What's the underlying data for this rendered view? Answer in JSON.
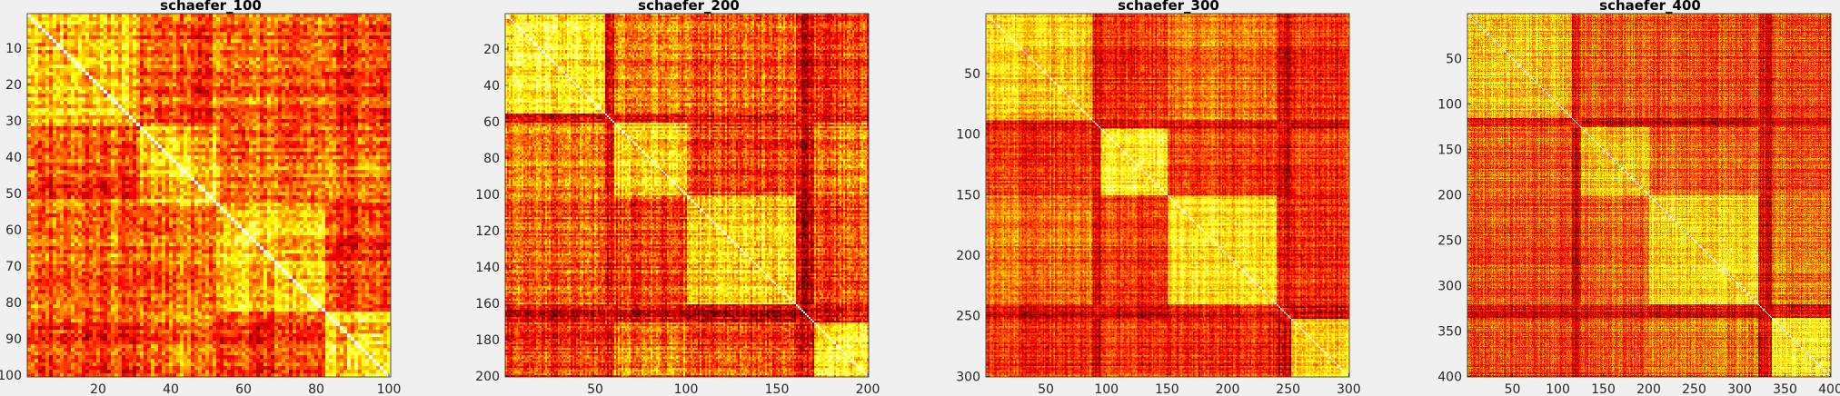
{
  "colors": {
    "background": "#f0f0f0",
    "axis": "#262626",
    "colormap": "hot"
  },
  "chart_data": [
    {
      "type": "heatmap",
      "title": "schaefer_100",
      "n": 100,
      "xticks": [
        20,
        40,
        60,
        80,
        100
      ],
      "yticks": [
        10,
        20,
        30,
        40,
        50,
        60,
        70,
        80,
        90,
        100
      ],
      "xlim": [
        0.5,
        100.5
      ],
      "ylim": [
        0.5,
        100.5
      ],
      "network_boundaries": [
        31,
        52,
        82
      ],
      "colormap": "hot",
      "diagonal_value": 1
    },
    {
      "type": "heatmap",
      "title": "schaefer_200",
      "n": 200,
      "xticks": [
        50,
        100,
        150,
        200
      ],
      "yticks": [
        20,
        40,
        60,
        80,
        100,
        120,
        140,
        160,
        180,
        200
      ],
      "xlim": [
        0.5,
        200.5
      ],
      "ylim": [
        0.5,
        200.5
      ],
      "network_boundaries": [
        55,
        60,
        100,
        160,
        170
      ],
      "colormap": "hot",
      "diagonal_value": 1
    },
    {
      "type": "heatmap",
      "title": "schaefer_300",
      "n": 300,
      "xticks": [
        50,
        100,
        150,
        200,
        250,
        300
      ],
      "yticks": [
        50,
        100,
        150,
        200,
        250,
        300
      ],
      "xlim": [
        0.5,
        300.5
      ],
      "ylim": [
        0.5,
        300.5
      ],
      "network_boundaries": [
        88,
        95,
        150,
        240,
        252
      ],
      "colormap": "hot",
      "diagonal_value": 1
    },
    {
      "type": "heatmap",
      "title": "schaefer_400",
      "n": 400,
      "xticks": [
        50,
        100,
        150,
        200,
        250,
        300,
        350,
        400
      ],
      "yticks": [
        50,
        100,
        150,
        200,
        250,
        300,
        350,
        400
      ],
      "xlim": [
        0.5,
        400.5
      ],
      "ylim": [
        0.5,
        400.5
      ],
      "network_boundaries": [
        115,
        125,
        200,
        320,
        335
      ],
      "colormap": "hot",
      "diagonal_value": 1
    }
  ]
}
